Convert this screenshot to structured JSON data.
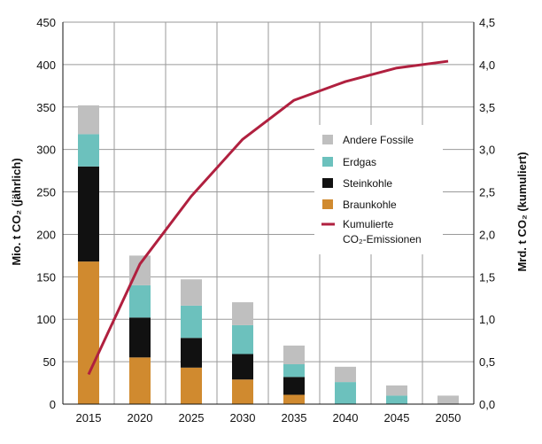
{
  "chart_data": {
    "type": "bar",
    "categories": [
      "2015",
      "2020",
      "2025",
      "2030",
      "2035",
      "2040",
      "2045",
      "2050"
    ],
    "ylim": [
      0,
      450
    ],
    "y_ticks": [
      "0",
      "50",
      "100",
      "150",
      "200",
      "250",
      "300",
      "350",
      "400",
      "450"
    ],
    "y2lim": [
      0,
      4.5
    ],
    "y2_ticks": [
      "0,0",
      "0,5",
      "1,0",
      "1,5",
      "2,0",
      "2,5",
      "3,0",
      "3,5",
      "4,0",
      "4,5"
    ],
    "ylabel": "Mio. t CO₂ (jährlich)",
    "y2label": "Mrd. t CO₂ (kumuliert)",
    "grid": true,
    "legend_position": "right-center",
    "series": [
      {
        "name": "Braunkohle",
        "type": "stacked-bar",
        "color": "#d08a2f",
        "values": [
          168,
          55,
          43,
          29,
          11,
          0,
          0,
          0
        ]
      },
      {
        "name": "Steinkohle",
        "type": "stacked-bar",
        "color": "#111111",
        "values": [
          112,
          47,
          35,
          30,
          21,
          0,
          0,
          0
        ]
      },
      {
        "name": "Erdgas",
        "type": "stacked-bar",
        "color": "#6cc1bd",
        "values": [
          38,
          38,
          38,
          34,
          15,
          26,
          10,
          0
        ]
      },
      {
        "name": "Andere Fossile",
        "type": "stacked-bar",
        "color": "#bfbfbf",
        "values": [
          34,
          35,
          31,
          27,
          22,
          18,
          12,
          10
        ]
      },
      {
        "name": "Kumulierte CO₂-Emissionen",
        "type": "line",
        "axis": "right",
        "color": "#b0203f",
        "values": [
          0.35,
          1.65,
          2.45,
          3.12,
          3.58,
          3.8,
          3.96,
          4.04
        ]
      }
    ]
  },
  "legend": {
    "items": [
      {
        "label": "Andere Fossile",
        "color": "#bfbfbf",
        "kind": "box"
      },
      {
        "label": "Erdgas",
        "color": "#6cc1bd",
        "kind": "box"
      },
      {
        "label": "Steinkohle",
        "color": "#111111",
        "kind": "box"
      },
      {
        "label": "Braunkohle",
        "color": "#d08a2f",
        "kind": "box"
      },
      {
        "label": "Kumulierte",
        "label2": "CO₂-Emissionen",
        "color": "#b0203f",
        "kind": "line"
      }
    ]
  }
}
